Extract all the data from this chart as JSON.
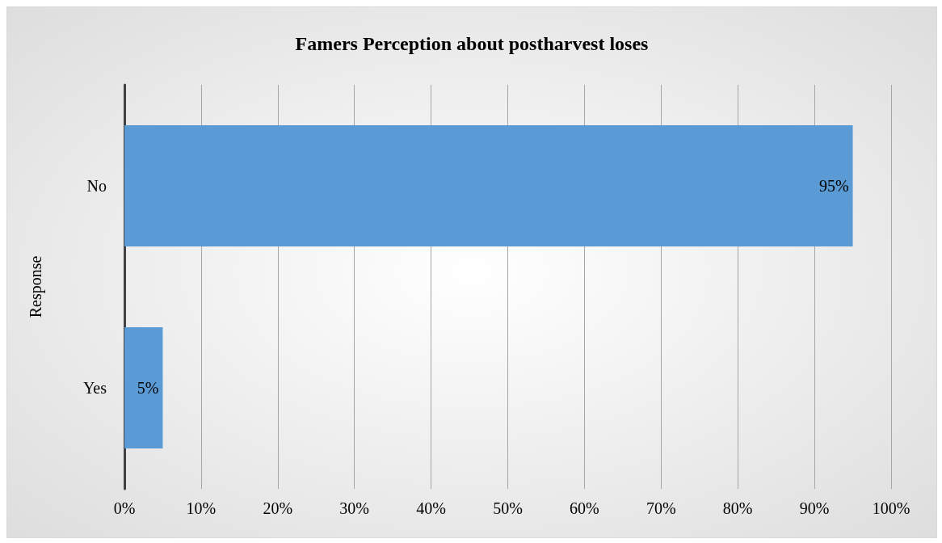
{
  "chart_data": {
    "type": "bar",
    "orientation": "horizontal",
    "title": "Famers Perception about postharvest loses",
    "ylabel": "Response",
    "categories": [
      "No",
      "Yes"
    ],
    "values": [
      95,
      5
    ],
    "value_labels": [
      "95%",
      "5%"
    ],
    "color": "#5b9bd5",
    "xlim": [
      0,
      100
    ],
    "xticks": [
      {
        "value": 0,
        "label": "0%"
      },
      {
        "value": 10,
        "label": "10%"
      },
      {
        "value": 20,
        "label": "20%"
      },
      {
        "value": 30,
        "label": "30%"
      },
      {
        "value": 40,
        "label": "40%"
      },
      {
        "value": 50,
        "label": "50%"
      },
      {
        "value": 60,
        "label": "60%"
      },
      {
        "value": 70,
        "label": "70%"
      },
      {
        "value": 80,
        "label": "80%"
      },
      {
        "value": 90,
        "label": "90%"
      },
      {
        "value": 100,
        "label": "100%"
      }
    ],
    "grid": "x"
  }
}
